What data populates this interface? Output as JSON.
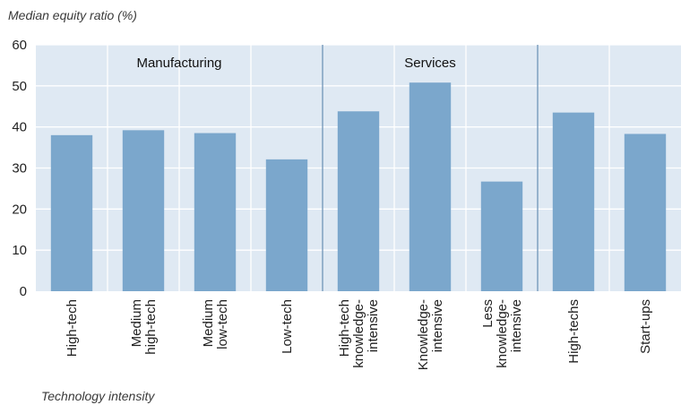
{
  "chart_data": {
    "type": "bar",
    "title": "",
    "ylabel": "Median equity ratio (%)",
    "xlabel": "Technology intensity",
    "ylim": [
      0,
      60
    ],
    "yticks": [
      0,
      10,
      20,
      30,
      40,
      50,
      60
    ],
    "grid": true,
    "groups": [
      {
        "label": "Manufacturing",
        "categories": [
          0,
          1,
          2,
          3
        ]
      },
      {
        "label": "Services",
        "categories": [
          4,
          5,
          6
        ]
      },
      {
        "label": "",
        "categories": [
          7,
          8
        ]
      }
    ],
    "categories": [
      [
        "High-tech"
      ],
      [
        "Medium",
        "high-tech"
      ],
      [
        "Medium",
        "low-tech"
      ],
      [
        "Low-tech"
      ],
      [
        "High-tech",
        "knowledge-",
        "intensive"
      ],
      [
        "Knowledge-",
        "intensive"
      ],
      [
        "Less",
        "knowledge-",
        "intensive"
      ],
      [
        "High-techs"
      ],
      [
        "Start-ups"
      ]
    ],
    "values": [
      38,
      39.2,
      38.5,
      32.1,
      43.8,
      50.8,
      26.7,
      43.5,
      38.3
    ],
    "colors": {
      "bar": "#7ba7cc",
      "plot_bg": "#dfe9f3",
      "grid": "#ffffff",
      "divider": "#6f94b8"
    }
  }
}
